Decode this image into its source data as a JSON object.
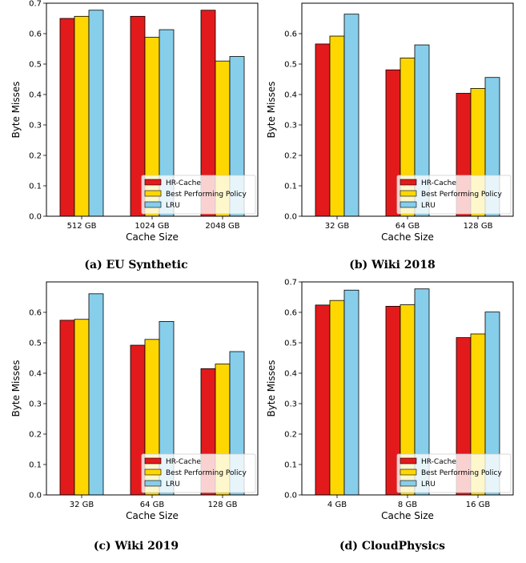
{
  "colors": {
    "hr_cache": "#e31a1c",
    "best_policy": "#ffd700",
    "lru": "#87ceeb"
  },
  "legend": [
    "HR-Cache",
    "Best Performing Policy",
    "LRU"
  ],
  "chart_data": [
    {
      "type": "bar",
      "caption": "(a) EU Synthetic",
      "categories": [
        "512 GB",
        "1024 GB",
        "2048 GB"
      ],
      "series": [
        {
          "name": "HR-Cache",
          "values": [
            0.65,
            0.657,
            0.677
          ]
        },
        {
          "name": "Best Performing Policy",
          "values": [
            0.657,
            0.588,
            0.51
          ]
        },
        {
          "name": "LRU",
          "values": [
            0.677,
            0.613,
            0.525
          ]
        }
      ],
      "xlabel": "Cache Size",
      "ylabel": "Byte Misses",
      "ylim": [
        0,
        0.7
      ],
      "yticks": [
        "0.0",
        "0.1",
        "0.2",
        "0.3",
        "0.4",
        "0.5",
        "0.6",
        "0.7"
      ],
      "legend_position": "lower-right"
    },
    {
      "type": "bar",
      "caption": "(b) Wiki 2018",
      "categories": [
        "32 GB",
        "64 GB",
        "128 GB"
      ],
      "series": [
        {
          "name": "HR-Cache",
          "values": [
            0.566,
            0.481,
            0.404
          ]
        },
        {
          "name": "Best Performing Policy",
          "values": [
            0.592,
            0.52,
            0.42
          ]
        },
        {
          "name": "LRU",
          "values": [
            0.664,
            0.563,
            0.456
          ]
        }
      ],
      "xlabel": "Cache Size",
      "ylabel": "Byte Misses",
      "ylim": [
        0,
        0.7
      ],
      "yticks": [
        "0.0",
        "0.1",
        "0.2",
        "0.3",
        "0.4",
        "0.5",
        "0.6"
      ],
      "legend_position": "lower-right"
    },
    {
      "type": "bar",
      "caption": "(c) Wiki 2019",
      "categories": [
        "32 GB",
        "64 GB",
        "128 GB"
      ],
      "series": [
        {
          "name": "HR-Cache",
          "values": [
            0.574,
            0.492,
            0.415
          ]
        },
        {
          "name": "Best Performing Policy",
          "values": [
            0.577,
            0.511,
            0.43
          ]
        },
        {
          "name": "LRU",
          "values": [
            0.661,
            0.57,
            0.471
          ]
        }
      ],
      "xlabel": "Cache Size",
      "ylabel": "Byte Misses",
      "ylim": [
        0,
        0.7
      ],
      "yticks": [
        "0.0",
        "0.1",
        "0.2",
        "0.3",
        "0.4",
        "0.5",
        "0.6"
      ],
      "legend_position": "lower-right"
    },
    {
      "type": "bar",
      "caption": "(d) CloudPhysics",
      "categories": [
        "4 GB",
        "8 GB",
        "16 GB"
      ],
      "series": [
        {
          "name": "HR-Cache",
          "values": [
            0.624,
            0.62,
            0.517
          ]
        },
        {
          "name": "Best Performing Policy",
          "values": [
            0.639,
            0.625,
            0.529
          ]
        },
        {
          "name": "LRU",
          "values": [
            0.673,
            0.677,
            0.601
          ]
        }
      ],
      "xlabel": "Cache Size",
      "ylabel": "Byte Misses",
      "ylim": [
        0,
        0.7
      ],
      "yticks": [
        "0.0",
        "0.1",
        "0.2",
        "0.3",
        "0.4",
        "0.5",
        "0.6",
        "0.7"
      ],
      "legend_position": "lower-right"
    }
  ]
}
